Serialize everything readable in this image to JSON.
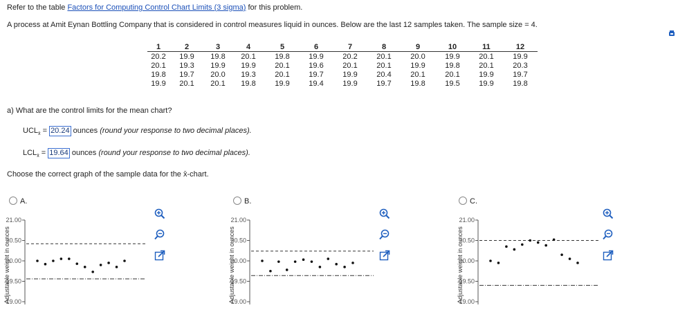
{
  "intro": {
    "prefix": "Refer to the table ",
    "link": "Factors for Computing Control Chart Limits (3 sigma)",
    "suffix": " for this problem."
  },
  "problem": "A process at Amit Eynan Bottling Company that is considered in control measures liquid in ounces. Below are the last 12 samples taken. The sample size = 4.",
  "table": {
    "headers": [
      "1",
      "2",
      "3",
      "4",
      "5",
      "6",
      "7",
      "8",
      "9",
      "10",
      "11",
      "12"
    ],
    "rows": [
      [
        "20.2",
        "19.9",
        "19.8",
        "20.1",
        "19.8",
        "19.9",
        "20.2",
        "20.1",
        "20.0",
        "19.9",
        "20.1",
        "19.9"
      ],
      [
        "20.1",
        "19.3",
        "19.9",
        "19.9",
        "20.1",
        "19.6",
        "20.1",
        "20.1",
        "19.9",
        "19.8",
        "20.1",
        "20.3"
      ],
      [
        "19.8",
        "19.7",
        "20.0",
        "19.3",
        "20.1",
        "19.7",
        "19.9",
        "20.4",
        "20.1",
        "20.1",
        "19.9",
        "19.7"
      ],
      [
        "19.9",
        "20.1",
        "20.1",
        "19.8",
        "19.9",
        "19.4",
        "19.9",
        "19.7",
        "19.8",
        "19.5",
        "19.9",
        "19.8"
      ]
    ]
  },
  "question_a": "a) What are the control limits for the mean chart?",
  "ucl": {
    "label": "UCL",
    "sub": "x̄",
    "eq": " = ",
    "value": "20.24",
    "unit": "ounces",
    "note": "(round your response to two decimal places)."
  },
  "lcl": {
    "label": "LCL",
    "sub": "x̄",
    "eq": " = ",
    "value": "19.64",
    "unit": "ounces",
    "note": "(round your response to two decimal places)."
  },
  "choose": "Choose the correct graph of the sample data for the x̄-chart.",
  "options": [
    {
      "label": "A."
    },
    {
      "label": "B."
    },
    {
      "label": "C."
    }
  ],
  "ylabel": "Adjustable weight in ounces",
  "yticks": [
    "21.00",
    "20.50",
    "20.00",
    "19.50",
    "19.00"
  ],
  "colors": {
    "link": "#1a4fb8",
    "answer_border": "#3b6fd1",
    "icon": "#1f5fbf"
  },
  "chart_data": [
    {
      "type": "scatter",
      "ylabel": "Adjustable weight in ounces",
      "ylim": [
        19.0,
        21.0
      ],
      "yticks": [
        21.0,
        20.5,
        20.0,
        19.5,
        19.0
      ],
      "upper_line": 20.42,
      "lower_line": 19.56,
      "x": [
        1,
        2,
        3,
        4,
        5,
        6,
        7,
        8,
        9,
        10,
        11,
        12
      ],
      "y": [
        20.0,
        19.92,
        20.0,
        20.05,
        20.05,
        19.93,
        19.85,
        19.73,
        19.9,
        19.95,
        19.85,
        20.0
      ]
    },
    {
      "type": "scatter",
      "ylabel": "Adjustable weight in ounces",
      "ylim": [
        19.0,
        21.0
      ],
      "yticks": [
        21.0,
        20.5,
        20.0,
        19.5,
        19.0
      ],
      "upper_line": 20.24,
      "lower_line": 19.64,
      "x": [
        1,
        2,
        3,
        4,
        5,
        6,
        7,
        8,
        9,
        10,
        11,
        12
      ],
      "y": [
        20.0,
        19.75,
        19.98,
        19.78,
        19.98,
        20.03,
        19.98,
        19.85,
        20.05,
        19.92,
        19.85,
        19.95
      ]
    },
    {
      "type": "scatter",
      "ylabel": "Adjustable weight in ounces",
      "ylim": [
        19.0,
        21.0
      ],
      "yticks": [
        21.0,
        20.5,
        20.0,
        19.5,
        19.0
      ],
      "upper_line": 20.5,
      "lower_line": 19.4,
      "x": [
        1,
        2,
        3,
        4,
        5,
        6,
        7,
        8,
        9,
        10,
        11,
        12
      ],
      "y": [
        20.0,
        19.95,
        20.35,
        20.28,
        20.4,
        20.5,
        20.45,
        20.38,
        20.52,
        20.15,
        20.05,
        19.95
      ]
    }
  ]
}
